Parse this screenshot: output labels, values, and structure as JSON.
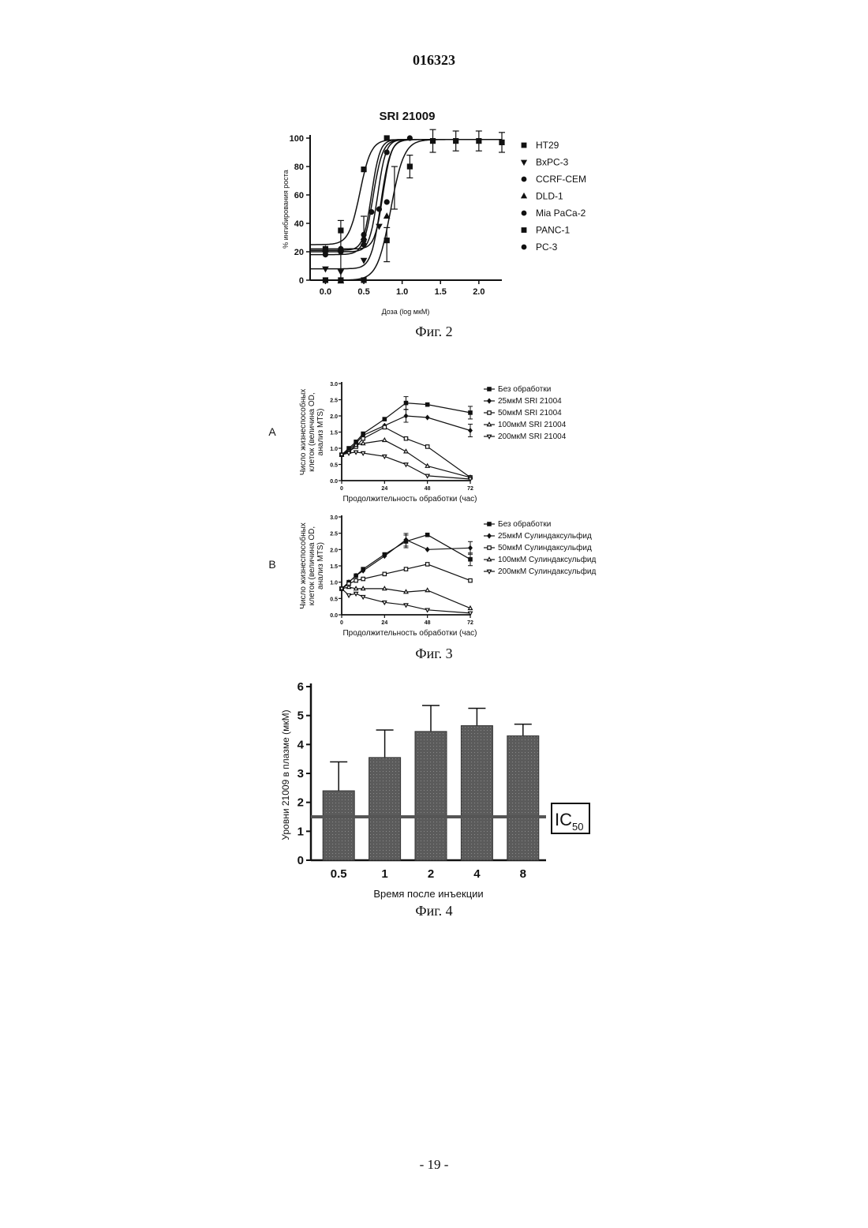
{
  "header": {
    "patent_number": "016323"
  },
  "footer": {
    "page_number": "- 19 -"
  },
  "chart_data": [
    {
      "id": "fig2",
      "type": "scatter",
      "caption": "Фиг. 2",
      "title": "SRI 21009",
      "xlabel": "Доза (log мкМ)",
      "ylabel": "% ингибирования роста",
      "xlim": [
        -0.2,
        2.3
      ],
      "ylim": [
        0,
        100
      ],
      "xticks": [
        0.0,
        0.5,
        1.0,
        1.5,
        2.0
      ],
      "xtick_labels": [
        "0.0",
        "0.5",
        "1.0",
        "1.5",
        "2.0"
      ],
      "yticks": [
        0,
        20,
        40,
        60,
        80,
        100
      ],
      "ytick_labels": [
        "0",
        "20",
        "40",
        "60",
        "80",
        "100"
      ],
      "legend_position": "right",
      "series": [
        {
          "name": "HT29",
          "marker": "square",
          "bottom": 25,
          "ec50": 0.45,
          "hill": 6,
          "x": [
            0.0,
            0.2,
            0.5,
            0.8
          ],
          "y": [
            22,
            35,
            78,
            100
          ]
        },
        {
          "name": "BxPC-3",
          "marker": "triangle-down",
          "bottom": 8,
          "ec50": 0.72,
          "hill": 7,
          "x": [
            0.0,
            0.2,
            0.5,
            0.7
          ],
          "y": [
            8,
            6,
            14,
            38
          ]
        },
        {
          "name": "CCRF-CEM",
          "marker": "circle",
          "bottom": 20,
          "ec50": 0.68,
          "hill": 8,
          "x": [
            0.0,
            0.2,
            0.5,
            0.7,
            0.8
          ],
          "y": [
            20,
            20,
            28,
            50,
            90
          ]
        },
        {
          "name": "DLD-1",
          "marker": "triangle-up",
          "bottom": 22,
          "ec50": 0.75,
          "hill": 8,
          "x": [
            0.0,
            0.2,
            0.5,
            0.8
          ],
          "y": [
            22,
            22,
            30,
            45
          ]
        },
        {
          "name": "Mia PaCa-2",
          "marker": "circle",
          "bottom": 21,
          "ec50": 0.6,
          "hill": 8,
          "x": [
            0.0,
            0.2,
            0.5,
            0.6
          ],
          "y": [
            21,
            21,
            32,
            48
          ]
        },
        {
          "name": "PANC-1",
          "marker": "square",
          "bottom": 0,
          "ec50": 0.85,
          "hill": 5,
          "x": [
            0.0,
            0.2,
            0.5,
            0.8,
            1.1,
            1.4,
            1.7,
            2.0,
            2.3
          ],
          "y": [
            0,
            0,
            0,
            28,
            80,
            98,
            98,
            98,
            97
          ]
        },
        {
          "name": "PC-3",
          "marker": "circle",
          "bottom": 18,
          "ec50": 0.62,
          "hill": 7,
          "x": [
            0.0,
            0.2,
            0.5,
            0.8,
            1.1
          ],
          "y": [
            18,
            22,
            25,
            55,
            100
          ]
        }
      ],
      "errorbars": [
        {
          "x": 0.2,
          "y": 20,
          "err": 22
        },
        {
          "x": 0.5,
          "y": 35,
          "err": 10
        },
        {
          "x": 0.8,
          "y": 25,
          "err": 12
        },
        {
          "x": 0.9,
          "y": 65,
          "err": 15
        },
        {
          "x": 1.1,
          "y": 80,
          "err": 8
        },
        {
          "x": 1.4,
          "y": 98,
          "err": 8
        },
        {
          "x": 1.7,
          "y": 98,
          "err": 7
        },
        {
          "x": 2.0,
          "y": 98,
          "err": 7
        },
        {
          "x": 2.3,
          "y": 97,
          "err": 7
        }
      ]
    },
    {
      "id": "fig3a",
      "type": "line",
      "panel_label": "A",
      "xlabel": "Продолжительность обработки (час)",
      "ylabel": [
        "Число жизнеспособных",
        "клеток (величина OD,",
        "анализ MTS)"
      ],
      "xlim": [
        0,
        72
      ],
      "ylim": [
        0,
        3.0
      ],
      "xticks": [
        0,
        24,
        48,
        72
      ],
      "yticks": [
        0.0,
        0.5,
        1.0,
        1.5,
        2.0,
        2.5,
        3.0
      ],
      "ytick_labels": [
        "0.0",
        "0.5",
        "1.0",
        "1.5",
        "2.0",
        "2.5",
        "3.0"
      ],
      "legend_position": "right",
      "series": [
        {
          "name": "Без обработки",
          "marker": "square",
          "x": [
            0,
            4,
            8,
            12,
            24,
            36,
            48,
            72
          ],
          "y": [
            0.8,
            1.0,
            1.2,
            1.45,
            1.9,
            2.4,
            2.35,
            2.1
          ]
        },
        {
          "name": "25мкМ SRI 21004",
          "marker": "diamond",
          "x": [
            0,
            4,
            8,
            12,
            24,
            36,
            48,
            72
          ],
          "y": [
            0.8,
            0.95,
            1.15,
            1.4,
            1.7,
            2.0,
            1.95,
            1.55
          ]
        },
        {
          "name": "50мкМ SRI 21004",
          "marker": "square-open",
          "x": [
            0,
            4,
            8,
            12,
            24,
            36,
            48,
            72
          ],
          "y": [
            0.8,
            0.9,
            1.05,
            1.3,
            1.65,
            1.3,
            1.05,
            0.1
          ]
        },
        {
          "name": "100мкМ SRI 21004",
          "marker": "triangle-up-open",
          "x": [
            0,
            4,
            8,
            12,
            24,
            36,
            48,
            72
          ],
          "y": [
            0.8,
            0.9,
            1.1,
            1.15,
            1.25,
            0.9,
            0.45,
            0.1
          ]
        },
        {
          "name": "200мкМ SRI 21004",
          "marker": "triangle-down-open",
          "x": [
            0,
            4,
            8,
            12,
            24,
            36,
            48,
            72
          ],
          "y": [
            0.8,
            0.85,
            0.88,
            0.85,
            0.75,
            0.5,
            0.15,
            0.05
          ]
        }
      ]
    },
    {
      "id": "fig3b",
      "type": "line",
      "panel_label": "B",
      "caption": "Фиг. 3",
      "xlabel": "Продолжительность обработки (час)",
      "ylabel": [
        "Число жизнеспособных",
        "клеток (величина OD,",
        "анализ MTS)"
      ],
      "xlim": [
        0,
        72
      ],
      "ylim": [
        0,
        3.0
      ],
      "xticks": [
        0,
        24,
        48,
        72
      ],
      "yticks": [
        0.0,
        0.5,
        1.0,
        1.5,
        2.0,
        2.5,
        3.0
      ],
      "ytick_labels": [
        "0.0",
        "0.5",
        "1.0",
        "1.5",
        "2.0",
        "2.5",
        "3.0"
      ],
      "legend_position": "right",
      "series": [
        {
          "name": "Без обработки",
          "marker": "square",
          "x": [
            0,
            4,
            8,
            12,
            24,
            36,
            48,
            72
          ],
          "y": [
            0.8,
            1.0,
            1.2,
            1.4,
            1.85,
            2.25,
            2.45,
            1.7
          ]
        },
        {
          "name": "25мкМ Сулиндаксульфид",
          "marker": "diamond",
          "x": [
            0,
            4,
            8,
            12,
            24,
            36,
            48,
            72
          ],
          "y": [
            0.8,
            1.0,
            1.2,
            1.35,
            1.8,
            2.3,
            2.0,
            2.05
          ]
        },
        {
          "name": "50мкМ Сулиндаксульфид",
          "marker": "square-open",
          "x": [
            0,
            4,
            8,
            12,
            24,
            36,
            48,
            72
          ],
          "y": [
            0.8,
            0.95,
            1.05,
            1.1,
            1.25,
            1.4,
            1.55,
            1.05
          ]
        },
        {
          "name": "100мкМ Сулиндаксульфид",
          "marker": "triangle-up-open",
          "x": [
            0,
            4,
            8,
            12,
            24,
            36,
            48,
            72
          ],
          "y": [
            0.8,
            0.85,
            0.8,
            0.8,
            0.8,
            0.7,
            0.75,
            0.2
          ]
        },
        {
          "name": "200мкМ Сулиндаксульфид",
          "marker": "triangle-down-open",
          "x": [
            0,
            4,
            8,
            12,
            24,
            36,
            48,
            72
          ],
          "y": [
            0.8,
            0.6,
            0.65,
            0.55,
            0.38,
            0.3,
            0.15,
            0.05
          ]
        }
      ]
    },
    {
      "id": "fig4",
      "type": "bar",
      "caption": "Фиг. 4",
      "xlabel": "Время после инъекции",
      "ylabel": "Уровни 21009 в плазме (мкМ)",
      "categories": [
        "0.5",
        "1",
        "2",
        "4",
        "8"
      ],
      "values": [
        2.4,
        3.55,
        4.45,
        4.65,
        4.3
      ],
      "errors": [
        1.0,
        0.95,
        0.9,
        0.6,
        0.4
      ],
      "ylim": [
        0,
        6
      ],
      "yticks": [
        0,
        1,
        2,
        3,
        4,
        5,
        6
      ],
      "ytick_labels": [
        "0",
        "1",
        "2",
        "3",
        "4",
        "5",
        "6"
      ],
      "reference_line": {
        "y": 1.5,
        "label_main": "IC",
        "label_sub": "50"
      }
    }
  ]
}
